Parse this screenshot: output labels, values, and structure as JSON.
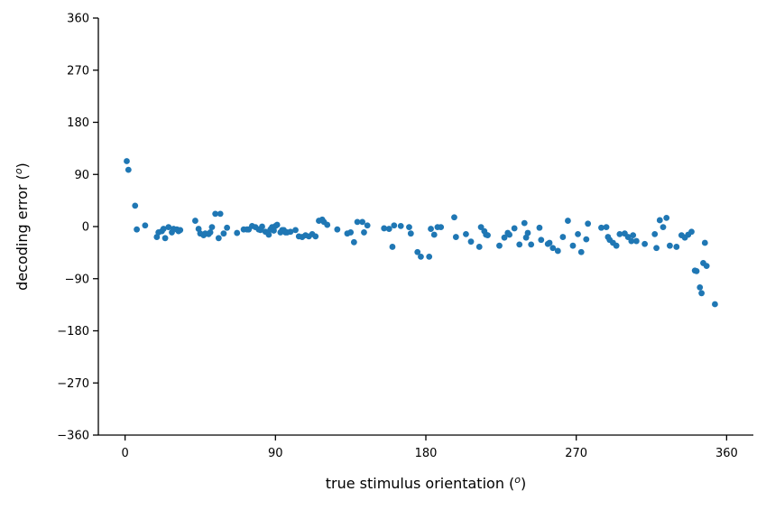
{
  "chart_data": {
    "type": "scatter",
    "title": "",
    "xlabel": "true stimulus orientation (",
    "xlabel_sup": "o",
    "xlabel_close": ")",
    "ylabel": "decoding error (",
    "ylabel_sup": "o",
    "ylabel_close": ")",
    "xlim": [
      -16,
      376
    ],
    "ylim": [
      -360,
      360
    ],
    "xticks": [
      0,
      90,
      180,
      270,
      360
    ],
    "xtick_labels": [
      "0",
      "90",
      "180",
      "270",
      "360"
    ],
    "yticks": [
      -360,
      -270,
      -180,
      -90,
      0,
      90,
      180,
      270,
      360
    ],
    "ytick_labels": [
      "−360",
      "−270",
      "−180",
      "−90",
      "0",
      "90",
      "180",
      "270",
      "360"
    ],
    "grid": false,
    "marker_color": "#1f77b4",
    "series": [
      {
        "x": [
          1,
          2,
          6,
          7,
          12,
          19,
          20,
          22,
          24,
          23,
          26,
          28,
          29,
          31,
          32,
          33,
          42,
          44,
          45,
          47,
          48,
          50,
          51,
          52,
          54,
          56,
          57,
          59,
          61,
          67,
          71,
          73,
          74,
          76,
          78,
          80,
          81,
          82,
          84,
          86,
          87,
          88,
          89,
          90,
          91,
          93,
          94,
          95,
          96,
          97,
          99,
          102,
          104,
          106,
          108,
          110,
          112,
          114,
          116,
          118,
          119,
          121,
          127,
          133,
          135,
          137,
          139,
          142,
          143,
          145,
          155,
          158,
          160,
          161,
          165,
          170,
          171,
          175,
          177,
          182,
          183,
          185,
          187,
          189,
          197,
          198,
          204,
          207,
          212,
          213,
          215,
          216,
          217,
          224,
          227,
          229,
          230,
          233,
          236,
          239,
          240,
          241,
          243,
          248,
          249,
          253,
          254,
          256,
          259,
          262,
          265,
          268,
          271,
          273,
          276,
          277,
          285,
          288,
          289,
          290,
          292,
          294,
          296,
          299,
          301,
          303,
          304,
          306,
          311,
          317,
          318,
          320,
          322,
          324,
          326,
          330,
          333,
          335,
          337,
          339,
          341,
          342,
          344,
          345,
          346,
          347,
          348,
          353
        ],
        "y": [
          113,
          98,
          36,
          -5,
          2,
          -18,
          -10,
          -8,
          -20,
          -4,
          -1,
          -10,
          -4,
          -5,
          -8,
          -6,
          10,
          -4,
          -12,
          -15,
          -12,
          -13,
          -10,
          -1,
          22,
          -20,
          22,
          -12,
          -2,
          -11,
          -5,
          -5,
          -5,
          1,
          -1,
          -5,
          -6,
          0,
          -9,
          -14,
          -5,
          -1,
          -7,
          1,
          3,
          -10,
          -6,
          -6,
          -10,
          -10,
          -9,
          -6,
          -17,
          -18,
          -15,
          -17,
          -13,
          -17,
          10,
          12,
          8,
          3,
          -5,
          -12,
          -10,
          -27,
          8,
          8,
          -10,
          2,
          -3,
          -4,
          -35,
          2,
          1,
          -1,
          -12,
          -44,
          -52,
          -52,
          -4,
          -14,
          -1,
          -1,
          16,
          -18,
          -13,
          -26,
          -35,
          -1,
          -8,
          -14,
          -15,
          -33,
          -19,
          -11,
          -14,
          -3,
          -31,
          6,
          -19,
          -11,
          -31,
          -2,
          -23,
          -30,
          -28,
          -37,
          -42,
          -18,
          10,
          -33,
          -13,
          -44,
          -22,
          5,
          -2,
          -1,
          -18,
          -23,
          -28,
          -33,
          -13,
          -12,
          -18,
          -25,
          -15,
          -25,
          -30,
          -13,
          -37,
          11,
          -1,
          15,
          -33,
          -35,
          -15,
          -19,
          -14,
          -9,
          -76,
          -77,
          -105,
          -115,
          -63,
          -28,
          -68,
          -134
        ]
      }
    ]
  }
}
